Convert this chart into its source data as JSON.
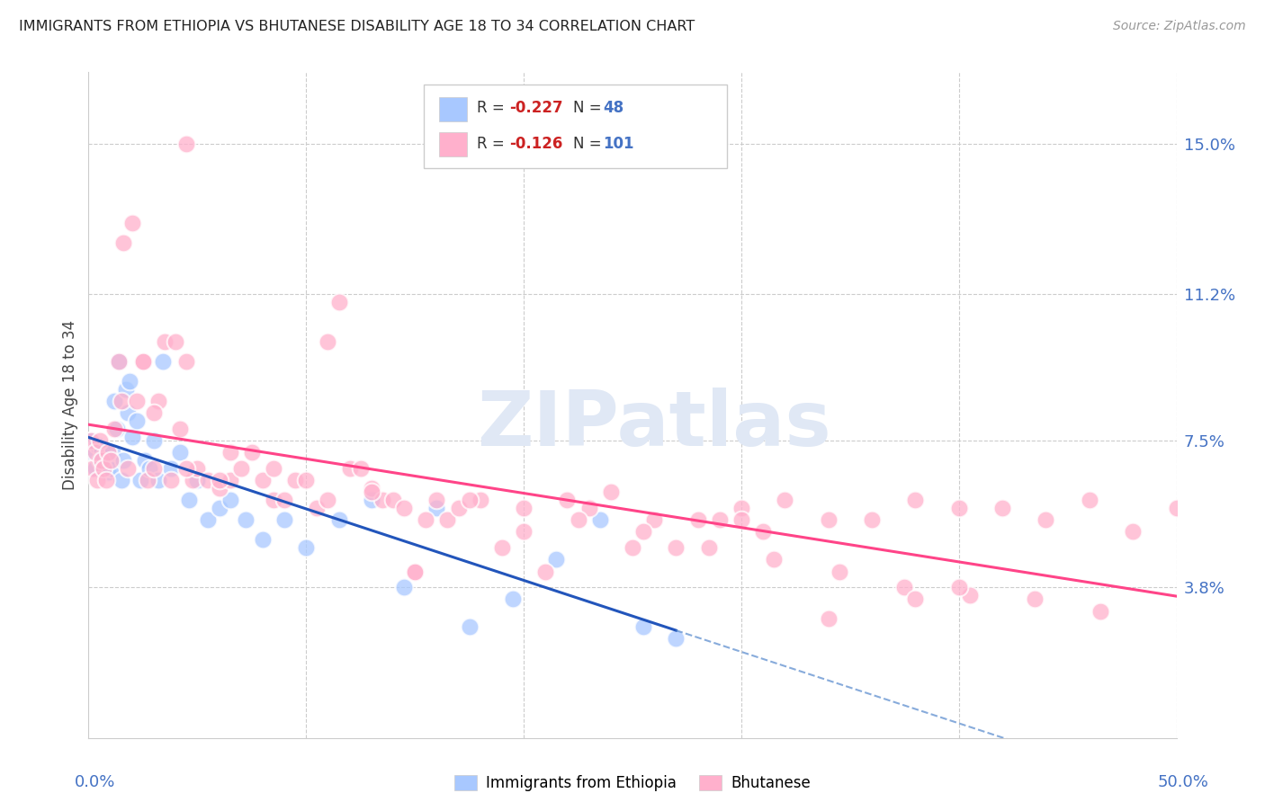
{
  "title": "IMMIGRANTS FROM ETHIOPIA VS BHUTANESE DISABILITY AGE 18 TO 34 CORRELATION CHART",
  "source": "Source: ZipAtlas.com",
  "ylabel": "Disability Age 18 to 34",
  "ytick_labels": [
    "3.8%",
    "7.5%",
    "11.2%",
    "15.0%"
  ],
  "ytick_values": [
    0.038,
    0.075,
    0.112,
    0.15
  ],
  "xlim": [
    0.0,
    0.5
  ],
  "ylim": [
    0.0,
    0.168
  ],
  "legend_ethiopia_R": "-0.227",
  "legend_ethiopia_N": "48",
  "legend_bhutan_R": "-0.126",
  "legend_bhutan_N": "101",
  "color_ethiopia": "#a8c8ff",
  "color_bhutan": "#ffb0cc",
  "watermark": "ZIPatlas",
  "ethiopia_x": [
    0.001,
    0.002,
    0.003,
    0.004,
    0.005,
    0.006,
    0.007,
    0.008,
    0.009,
    0.01,
    0.011,
    0.012,
    0.013,
    0.014,
    0.015,
    0.016,
    0.017,
    0.018,
    0.019,
    0.02,
    0.022,
    0.024,
    0.026,
    0.028,
    0.03,
    0.032,
    0.034,
    0.038,
    0.042,
    0.046,
    0.05,
    0.055,
    0.06,
    0.065,
    0.072,
    0.08,
    0.09,
    0.1,
    0.115,
    0.13,
    0.145,
    0.16,
    0.175,
    0.195,
    0.215,
    0.235,
    0.255,
    0.27
  ],
  "ethiopia_y": [
    0.075,
    0.072,
    0.068,
    0.074,
    0.07,
    0.073,
    0.071,
    0.069,
    0.067,
    0.068,
    0.072,
    0.085,
    0.078,
    0.095,
    0.065,
    0.07,
    0.088,
    0.082,
    0.09,
    0.076,
    0.08,
    0.065,
    0.07,
    0.068,
    0.075,
    0.065,
    0.095,
    0.068,
    0.072,
    0.06,
    0.065,
    0.055,
    0.058,
    0.06,
    0.055,
    0.05,
    0.055,
    0.048,
    0.055,
    0.06,
    0.038,
    0.058,
    0.028,
    0.035,
    0.045,
    0.055,
    0.028,
    0.025
  ],
  "bhutan_x": [
    0.001,
    0.002,
    0.003,
    0.004,
    0.005,
    0.006,
    0.007,
    0.008,
    0.009,
    0.01,
    0.012,
    0.014,
    0.015,
    0.016,
    0.018,
    0.02,
    0.022,
    0.025,
    0.027,
    0.03,
    0.032,
    0.035,
    0.038,
    0.04,
    0.042,
    0.045,
    0.048,
    0.05,
    0.055,
    0.06,
    0.065,
    0.07,
    0.075,
    0.08,
    0.085,
    0.09,
    0.095,
    0.1,
    0.105,
    0.11,
    0.115,
    0.12,
    0.125,
    0.13,
    0.135,
    0.14,
    0.145,
    0.15,
    0.16,
    0.165,
    0.17,
    0.18,
    0.19,
    0.2,
    0.21,
    0.22,
    0.23,
    0.24,
    0.25,
    0.26,
    0.27,
    0.28,
    0.29,
    0.3,
    0.31,
    0.32,
    0.34,
    0.36,
    0.38,
    0.4,
    0.42,
    0.44,
    0.46,
    0.48,
    0.5,
    0.03,
    0.045,
    0.065,
    0.085,
    0.11,
    0.13,
    0.155,
    0.175,
    0.2,
    0.225,
    0.255,
    0.285,
    0.315,
    0.345,
    0.375,
    0.405,
    0.435,
    0.465,
    0.025,
    0.06,
    0.15,
    0.3,
    0.4,
    0.34,
    0.38,
    0.045
  ],
  "bhutan_y": [
    0.075,
    0.068,
    0.072,
    0.065,
    0.075,
    0.07,
    0.068,
    0.065,
    0.072,
    0.07,
    0.078,
    0.095,
    0.085,
    0.125,
    0.068,
    0.13,
    0.085,
    0.095,
    0.065,
    0.068,
    0.085,
    0.1,
    0.065,
    0.1,
    0.078,
    0.095,
    0.065,
    0.068,
    0.065,
    0.063,
    0.065,
    0.068,
    0.072,
    0.065,
    0.06,
    0.06,
    0.065,
    0.065,
    0.058,
    0.1,
    0.11,
    0.068,
    0.068,
    0.063,
    0.06,
    0.06,
    0.058,
    0.042,
    0.06,
    0.055,
    0.058,
    0.06,
    0.048,
    0.052,
    0.042,
    0.06,
    0.058,
    0.062,
    0.048,
    0.055,
    0.048,
    0.055,
    0.055,
    0.058,
    0.052,
    0.06,
    0.055,
    0.055,
    0.06,
    0.058,
    0.058,
    0.055,
    0.06,
    0.052,
    0.058,
    0.082,
    0.068,
    0.072,
    0.068,
    0.06,
    0.062,
    0.055,
    0.06,
    0.058,
    0.055,
    0.052,
    0.048,
    0.045,
    0.042,
    0.038,
    0.036,
    0.035,
    0.032,
    0.095,
    0.065,
    0.042,
    0.055,
    0.038,
    0.03,
    0.035,
    0.15
  ]
}
